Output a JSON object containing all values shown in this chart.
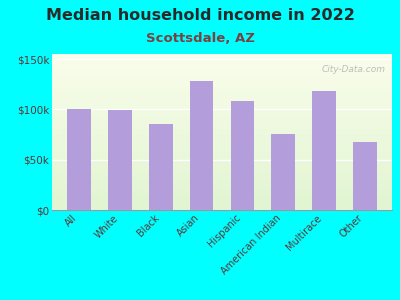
{
  "title": "Median household income in 2022",
  "subtitle": "Scottsdale, AZ",
  "categories": [
    "All",
    "White",
    "Black",
    "Asian",
    "Hispanic",
    "American Indian",
    "Multirace",
    "Other"
  ],
  "values": [
    100000,
    99000,
    85000,
    128000,
    108000,
    76000,
    118000,
    68000
  ],
  "bar_color": "#b39ddb",
  "background_outer": "#00ffff",
  "title_color": "#2a2a2a",
  "subtitle_color": "#7b4040",
  "tick_label_color": "#5a3535",
  "ytick_labels": [
    "$0",
    "$50k",
    "$100k",
    "$150k"
  ],
  "ytick_values": [
    0,
    50000,
    100000,
    150000
  ],
  "ylim": [
    0,
    155000
  ],
  "watermark": "City-Data.com",
  "title_fontsize": 11.5,
  "subtitle_fontsize": 9.5
}
